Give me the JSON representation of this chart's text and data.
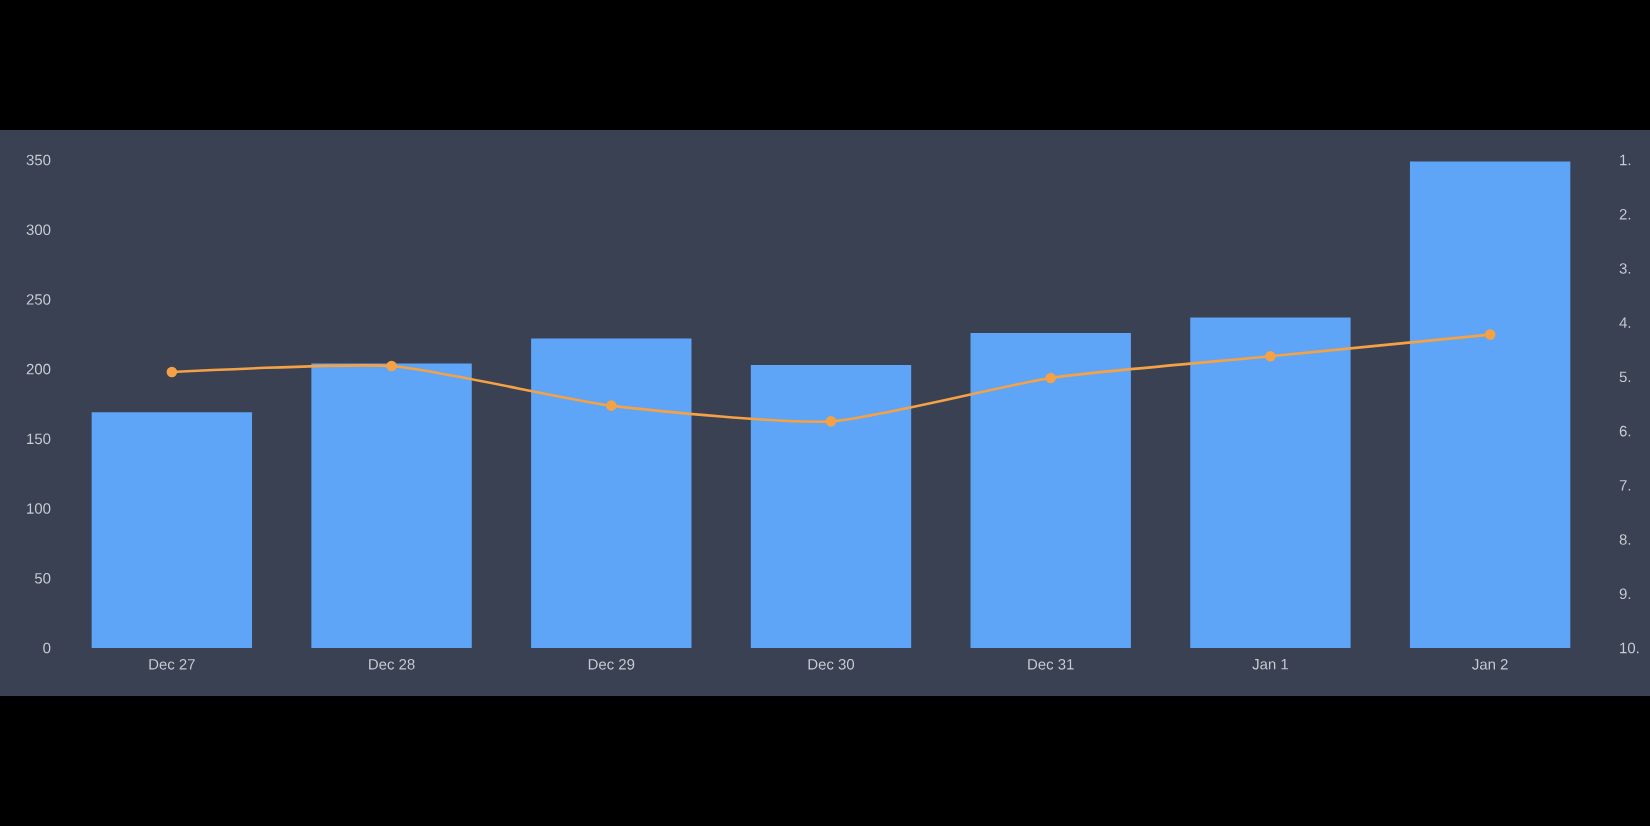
{
  "chart_data": {
    "type": "bar",
    "categories": [
      "Dec 27",
      "Dec 28",
      "Dec 29",
      "Dec 30",
      "Dec 31",
      "Jan 1",
      "Jan 2"
    ],
    "series": [
      {
        "color": "#5ea5f8",
        "values": [
          169,
          204,
          222,
          203,
          226,
          237,
          349
        ]
      },
      {
        "type": "line",
        "axis": "y2",
        "color": "#f4a245",
        "marker": "circle",
        "values": [
          4.91,
          4.8,
          5.53,
          5.82,
          5.02,
          4.62,
          4.22
        ]
      }
    ],
    "ylim": [
      0,
      350
    ],
    "yticks": [
      0,
      50,
      100,
      150,
      200,
      250,
      300,
      350
    ],
    "y2lim": [
      10,
      1
    ],
    "y2ticks": [
      {
        "value": 1,
        "label": "1."
      },
      {
        "value": 2,
        "label": "2."
      },
      {
        "value": 3,
        "label": "3."
      },
      {
        "value": 4,
        "label": "4."
      },
      {
        "value": 5,
        "label": "5."
      },
      {
        "value": 6,
        "label": "6."
      },
      {
        "value": 7,
        "label": "7."
      },
      {
        "value": 8,
        "label": "8."
      },
      {
        "value": 9,
        "label": "9."
      },
      {
        "value": 10,
        "label": "10."
      }
    ]
  }
}
